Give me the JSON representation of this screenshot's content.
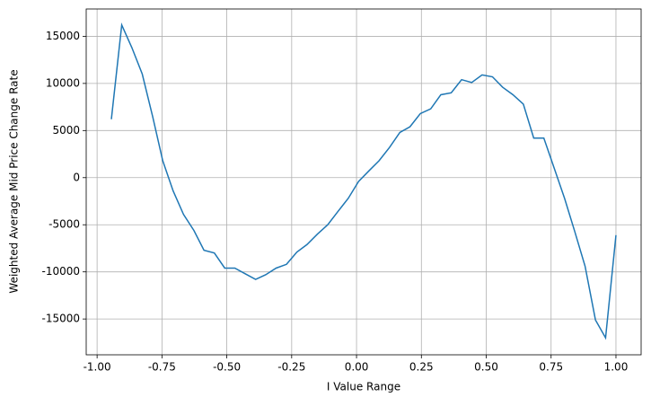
{
  "chart_data": {
    "type": "line",
    "xlabel": "I Value Range",
    "ylabel": "Weighted Average Mid Price Change Rate",
    "x": [
      -0.945,
      -0.905,
      -0.866,
      -0.826,
      -0.786,
      -0.747,
      -0.707,
      -0.667,
      -0.627,
      -0.588,
      -0.548,
      -0.508,
      -0.469,
      -0.429,
      -0.389,
      -0.35,
      -0.31,
      -0.27,
      -0.23,
      -0.191,
      -0.151,
      -0.111,
      -0.072,
      -0.032,
      0.008,
      0.047,
      0.087,
      0.127,
      0.167,
      0.206,
      0.246,
      0.286,
      0.325,
      0.365,
      0.405,
      0.444,
      0.484,
      0.524,
      0.563,
      0.603,
      0.643,
      0.683,
      0.722,
      0.762,
      0.802,
      0.841,
      0.881,
      0.921,
      0.96,
      1.0
    ],
    "series": [
      {
        "color": "#1f77b4",
        "values": [
          6200,
          16200,
          13800,
          11000,
          6500,
          1800,
          -1400,
          -3900,
          -5600,
          -7700,
          -8000,
          -9600,
          -9600,
          -10200,
          -10800,
          -10300,
          -9600,
          -9200,
          -7900,
          -7100,
          -6000,
          -5000,
          -3600,
          -2200,
          -400,
          700,
          1800,
          3200,
          4800,
          5400,
          6800,
          7300,
          8800,
          9000,
          10400,
          10100,
          10900,
          10700,
          9600,
          8800,
          7800,
          4200,
          4200,
          1000,
          -2200,
          -5700,
          -9400,
          -15100,
          -17000,
          -6100
        ]
      }
    ],
    "xlim": [
      -1.042,
      1.097
    ],
    "ylim": [
      -18800,
      17900
    ],
    "xticks": [
      {
        "value": -1,
        "label": "-1.00"
      },
      {
        "value": -0.75,
        "label": "-0.75"
      },
      {
        "value": -0.5,
        "label": "-0.50"
      },
      {
        "value": -0.25,
        "label": "-0.25"
      },
      {
        "value": 0,
        "label": "0.00"
      },
      {
        "value": 0.25,
        "label": "0.25"
      },
      {
        "value": 0.5,
        "label": "0.50"
      },
      {
        "value": 0.75,
        "label": "0.75"
      },
      {
        "value": 1,
        "label": "1.00"
      }
    ],
    "yticks": [
      -15000,
      -10000,
      -5000,
      0,
      5000,
      10000,
      15000
    ],
    "grid": true
  }
}
